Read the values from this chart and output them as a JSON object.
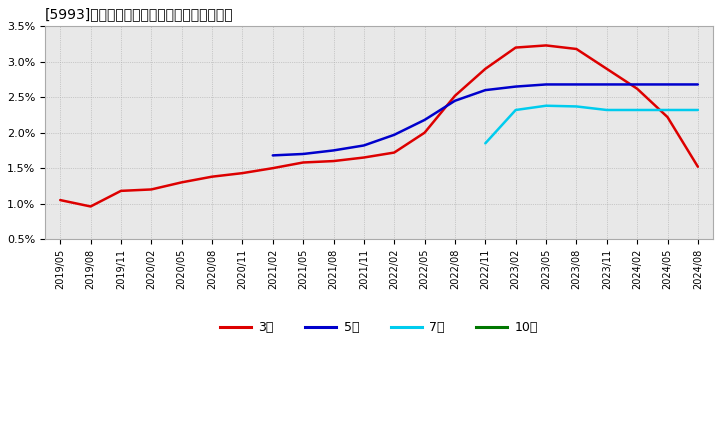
{
  "title": "[5993]　経常利益マージンの標準偏差の推移",
  "ylim": [
    0.005,
    0.035
  ],
  "yticks": [
    0.005,
    0.01,
    0.015,
    0.02,
    0.025,
    0.03,
    0.035
  ],
  "ytick_labels": [
    "0.5%",
    "1.0%",
    "1.5%",
    "2.0%",
    "2.5%",
    "3.0%",
    "3.5%"
  ],
  "background_color": "#ffffff",
  "plot_bg_color": "#e8e8e8",
  "legend": [
    {
      "label": "3年",
      "color": "#dd0000"
    },
    {
      "label": "5年",
      "color": "#0000cc"
    },
    {
      "label": "7年",
      "color": "#00ccee"
    },
    {
      "label": "10年",
      "color": "#007700"
    }
  ],
  "x_labels": [
    "2019/05",
    "2019/08",
    "2019/11",
    "2020/02",
    "2020/05",
    "2020/08",
    "2020/11",
    "2021/02",
    "2021/05",
    "2021/08",
    "2021/11",
    "2022/02",
    "2022/05",
    "2022/08",
    "2022/11",
    "2023/02",
    "2023/05",
    "2023/08",
    "2023/11",
    "2024/02",
    "2024/05",
    "2024/08"
  ],
  "series_3y": [
    0.0105,
    0.0096,
    0.0118,
    0.012,
    0.013,
    0.0138,
    0.0143,
    0.015,
    0.0158,
    0.016,
    0.0165,
    0.0172,
    0.02,
    0.0252,
    0.029,
    0.032,
    0.0323,
    0.0318,
    0.029,
    0.0262,
    0.0222,
    0.0152
  ],
  "series_5y": [
    null,
    null,
    null,
    null,
    null,
    null,
    null,
    0.0168,
    0.017,
    0.0175,
    0.0182,
    0.0197,
    0.0218,
    0.0245,
    0.026,
    0.0265,
    0.0268,
    0.0268,
    0.0268,
    0.0268,
    0.0268,
    0.0268
  ],
  "series_7y": [
    null,
    null,
    null,
    null,
    null,
    null,
    null,
    null,
    null,
    null,
    null,
    null,
    null,
    null,
    0.0185,
    0.0232,
    0.0238,
    0.0237,
    0.0232,
    0.0232,
    0.0232,
    0.0232
  ],
  "series_10y": [
    null,
    null,
    null,
    null,
    null,
    null,
    null,
    null,
    null,
    null,
    null,
    null,
    null,
    null,
    null,
    null,
    null,
    null,
    null,
    null,
    null,
    null
  ]
}
